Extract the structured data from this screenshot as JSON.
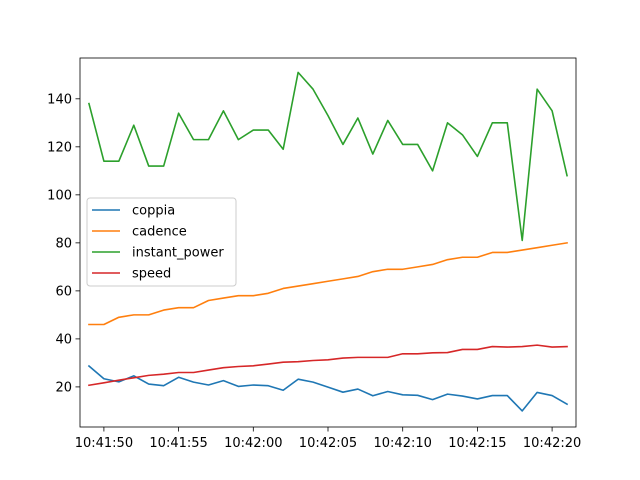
{
  "chart_data": {
    "type": "line",
    "x": [
      "10:41:49",
      "10:41:50",
      "10:41:51",
      "10:41:52",
      "10:41:53",
      "10:41:54",
      "10:41:55",
      "10:41:56",
      "10:41:57",
      "10:41:58",
      "10:41:59",
      "10:42:00",
      "10:42:01",
      "10:42:02",
      "10:42:03",
      "10:42:04",
      "10:42:05",
      "10:42:06",
      "10:42:07",
      "10:42:08",
      "10:42:09",
      "10:42:10",
      "10:42:11",
      "10:42:12",
      "10:42:13",
      "10:42:14",
      "10:42:15",
      "10:42:16",
      "10:42:17",
      "10:42:18",
      "10:42:19",
      "10:42:20",
      "10:42:21"
    ],
    "xticks": [
      "10:41:50",
      "10:41:55",
      "10:42:00",
      "10:42:05",
      "10:42:10",
      "10:42:15",
      "10:42:20"
    ],
    "yticks": [
      20,
      40,
      60,
      80,
      100,
      120,
      140
    ],
    "xlim": [
      "10:41:48.4",
      "10:42:21.6"
    ],
    "ylim": [
      3.3,
      157.0
    ],
    "legend": "center-left",
    "grid": false,
    "series": [
      {
        "name": "coppia",
        "color": "#1f77b4",
        "values": [
          28.7,
          23.4,
          22.1,
          24.6,
          21.2,
          20.5,
          24.0,
          22.0,
          20.8,
          22.6,
          20.2,
          20.8,
          20.5,
          18.6,
          23.2,
          22.0,
          19.9,
          17.8,
          19.1,
          16.3,
          18.1,
          16.7,
          16.5,
          14.7,
          17.0,
          16.2,
          15.0,
          16.4,
          16.4,
          10.0,
          17.7,
          16.4,
          12.8
        ]
      },
      {
        "name": "cadence",
        "color": "#ff7f0e",
        "values": [
          46,
          46,
          49,
          50,
          50,
          52,
          53,
          53,
          56,
          57,
          58,
          58,
          59,
          61,
          62,
          63,
          64,
          65,
          66,
          68,
          69,
          69,
          70,
          71,
          73,
          74,
          74,
          76,
          76,
          77,
          78,
          79,
          80
        ]
      },
      {
        "name": "instant_power",
        "color": "#2ca02c",
        "values": [
          138,
          114,
          114,
          129,
          112,
          112,
          134,
          123,
          123,
          135,
          123,
          127,
          127,
          119,
          151,
          144,
          133,
          121,
          132,
          117,
          131,
          121,
          121,
          110,
          130,
          125,
          116,
          130,
          130,
          81,
          144,
          135,
          108
        ]
      },
      {
        "name": "speed",
        "color": "#d62728",
        "values": [
          20.7,
          21.7,
          22.8,
          23.8,
          24.8,
          25.3,
          26.0,
          26.0,
          27.0,
          28.0,
          28.5,
          28.8,
          29.5,
          30.3,
          30.5,
          31.0,
          31.3,
          32.0,
          32.3,
          32.3,
          32.3,
          33.8,
          33.8,
          34.2,
          34.3,
          35.6,
          35.6,
          36.8,
          36.6,
          36.8,
          37.4,
          36.6,
          36.8
        ]
      }
    ]
  }
}
